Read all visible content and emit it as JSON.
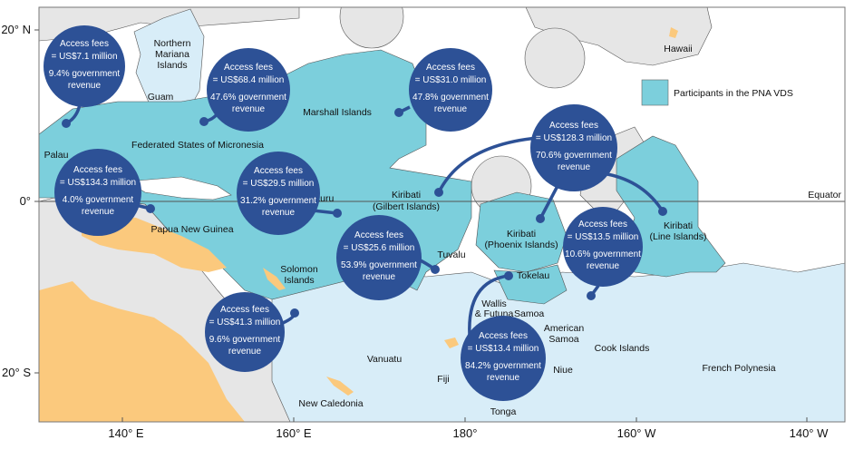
{
  "colors": {
    "pna": "#7ccfdc",
    "other_eez": "#d8edf8",
    "foreign": "#e6e6e6",
    "land": "#fbc97d",
    "bubble": "#2d5196",
    "border": "#555555",
    "frame": "#777777"
  },
  "axes": {
    "lat_ticks": [
      "20° N",
      "0°",
      "20° S"
    ],
    "lon_ticks": [
      "140° E",
      "160° E",
      "180°",
      "160° W",
      "140° W"
    ],
    "equator_label": "Equator"
  },
  "legend": {
    "label": "Participants in the PNA VDS"
  },
  "places": {
    "northern_mariana": [
      "Northern",
      "Mariana",
      "Islands"
    ],
    "guam": "Guam",
    "hawaii": "Hawaii",
    "marshall": "Marshall Islands",
    "fsm": "Federated States of Micronesia",
    "palau": "Palau",
    "png": "Papua New Guinea",
    "nauru": "Nauru",
    "kiribati_gilbert": [
      "Kiribati",
      "(Gilbert Islands)"
    ],
    "kiribati_phoenix": [
      "Kiribati",
      "(Phoenix Islands)"
    ],
    "kiribati_line": [
      "Kiribati",
      "(Line Islands)"
    ],
    "tuvalu": "Tuvalu",
    "solomon": [
      "Solomon",
      "Islands"
    ],
    "tokelau": "Tokelau",
    "wallis": [
      "Wallis",
      "& Futuna"
    ],
    "samoa": "Samoa",
    "american_samoa": [
      "American",
      "Samoa"
    ],
    "vanuatu": "Vanuatu",
    "fiji": "Fiji",
    "niue": "Niue",
    "cook": "Cook Islands",
    "french_polynesia": "French Polynesia",
    "new_caledonia": "New Caledonia",
    "tonga": "Tonga"
  },
  "bubbles": [
    {
      "id": "palau",
      "line1": "Access fees",
      "line2": "= US$7.1 million",
      "line3": "9.4% government",
      "line4": "revenue"
    },
    {
      "id": "fsm",
      "line1": "Access fees",
      "line2": "= US$68.4 million",
      "line3": "47.6% government",
      "line4": "revenue"
    },
    {
      "id": "marshall",
      "line1": "Access fees",
      "line2": "= US$31.0 million",
      "line3": "47.8% government",
      "line4": "revenue"
    },
    {
      "id": "kiribati",
      "line1": "Access fees",
      "line2": "= US$128.3 million",
      "line3": "70.6% government",
      "line4": "revenue"
    },
    {
      "id": "png",
      "line1": "Access fees",
      "line2": "= US$134.3 million",
      "line3": "4.0% government",
      "line4": "revenue"
    },
    {
      "id": "nauru",
      "line1": "Access fees",
      "line2": "= US$29.5 million",
      "line3": "31.2% government",
      "line4": "revenue"
    },
    {
      "id": "tuvalu",
      "line1": "Access fees",
      "line2": "= US$25.6 million",
      "line3": "53.9% government",
      "line4": "revenue"
    },
    {
      "id": "cook",
      "line1": "Access fees",
      "line2": "= US$13.5 million",
      "line3": "10.6% government",
      "line4": "revenue"
    },
    {
      "id": "solomon",
      "line1": "Access fees",
      "line2": "= US$41.3 million",
      "line3": "9.6% government",
      "line4": "revenue"
    },
    {
      "id": "tokelau",
      "line1": "Access fees",
      "line2": "= US$13.4 million",
      "line3": "84.2% government",
      "line4": "revenue"
    }
  ]
}
